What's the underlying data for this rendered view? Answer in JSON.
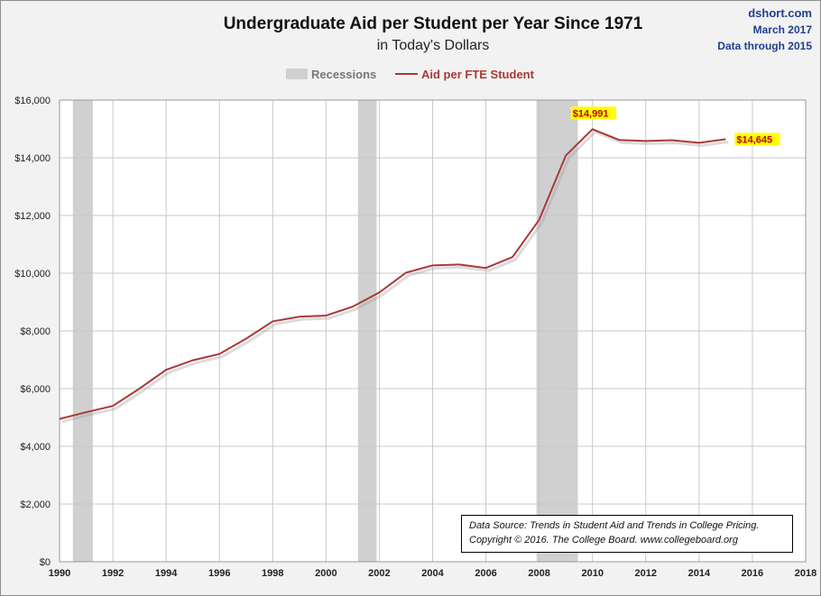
{
  "header": {
    "title": "Undergraduate  Aid per Student per Year Since 1971",
    "subtitle": "in Today's Dollars",
    "site": "dshort.com",
    "date": "March 2017",
    "through": "Data through 2015"
  },
  "source": {
    "line1": "Data Source:  Trends  in Student Aid and Trends  in College Pricing.",
    "line2": "Copyright © 2016. The College Board. www.collegeboard.org"
  },
  "chart_data": {
    "type": "line",
    "title": "Undergraduate  Aid per Student per Year Since 1971",
    "subtitle": "in Today's Dollars",
    "xlabel": "",
    "ylabel": "",
    "xlim": [
      1990,
      2018
    ],
    "ylim": [
      0,
      16000
    ],
    "x_ticks": [
      "1990",
      "1992",
      "1994",
      "1996",
      "1998",
      "2000",
      "2002",
      "2004",
      "2006",
      "2008",
      "2010",
      "2012",
      "2014",
      "2016",
      "2018"
    ],
    "y_ticks": [
      "$0",
      "$2,000",
      "$4,000",
      "$6,000",
      "$8,000",
      "$10,000",
      "$12,000",
      "$14,000",
      "$16,000"
    ],
    "grid": true,
    "legend_position": "top-center",
    "legend": [
      {
        "label": "Recessions",
        "color": "#d0d0d0",
        "kind": "band"
      },
      {
        "label": "Aid per FTE Student",
        "color": "#a83a36",
        "kind": "line"
      }
    ],
    "recessions": [
      [
        1990.5,
        1991.25
      ],
      [
        2001.2,
        2001.9
      ],
      [
        2007.9,
        2009.45
      ]
    ],
    "series": [
      {
        "name": "Aid per FTE Student",
        "color": "#a83a36",
        "x": [
          1990,
          1991,
          1992,
          1993,
          1994,
          1995,
          1996,
          1997,
          1998,
          1999,
          2000,
          2001,
          2002,
          2003,
          2004,
          2005,
          2006,
          2007,
          2008,
          2009,
          2010,
          2011,
          2012,
          2013,
          2014,
          2015
        ],
        "y": [
          4950,
          5180,
          5400,
          6000,
          6650,
          6980,
          7200,
          7730,
          8330,
          8490,
          8530,
          8840,
          9330,
          10020,
          10270,
          10300,
          10180,
          10560,
          11850,
          14080,
          14991,
          14620,
          14580,
          14610,
          14520,
          14645
        ]
      }
    ],
    "annotations": [
      {
        "text": "$14,991",
        "x": 2010,
        "y": 14991
      },
      {
        "text": "$14,645",
        "x": 2015,
        "y": 14645
      }
    ]
  },
  "colors": {
    "line": "#a83a36",
    "recession": "#d0d0d0",
    "label_bg": "#ffff00",
    "label_text": "#c00000",
    "corner_text": "#1f3f8f"
  }
}
